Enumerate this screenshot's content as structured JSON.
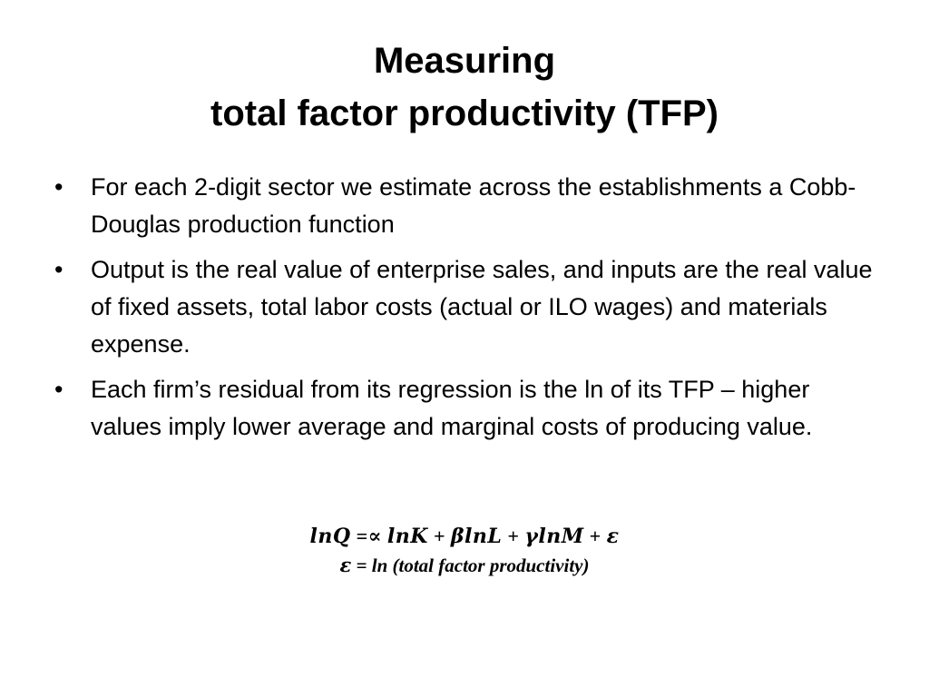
{
  "slide": {
    "title_line1": "Measuring",
    "title_line2": "total factor productivity (TFP)",
    "bullet_symbol": "•",
    "bullets": [
      "For each 2-digit sector we estimate across the establishments a Cobb-Douglas production function",
      "Output is the real value of enterprise sales, and inputs are the real value of fixed assets, total labor costs (actual or ILO wages) and materials expense.",
      "Each firm’s residual from its regression is the ln of its TFP – higher values imply lower average and marginal costs of producing value."
    ],
    "equation": "𝒍𝒏𝑸 =∝ 𝒍𝒏𝑲 + 𝜷𝒍𝒏𝑳 + 𝜸𝒍𝒏𝑴 + 𝜺",
    "equation_note": "𝜺 = ln (total factor productivity)"
  }
}
